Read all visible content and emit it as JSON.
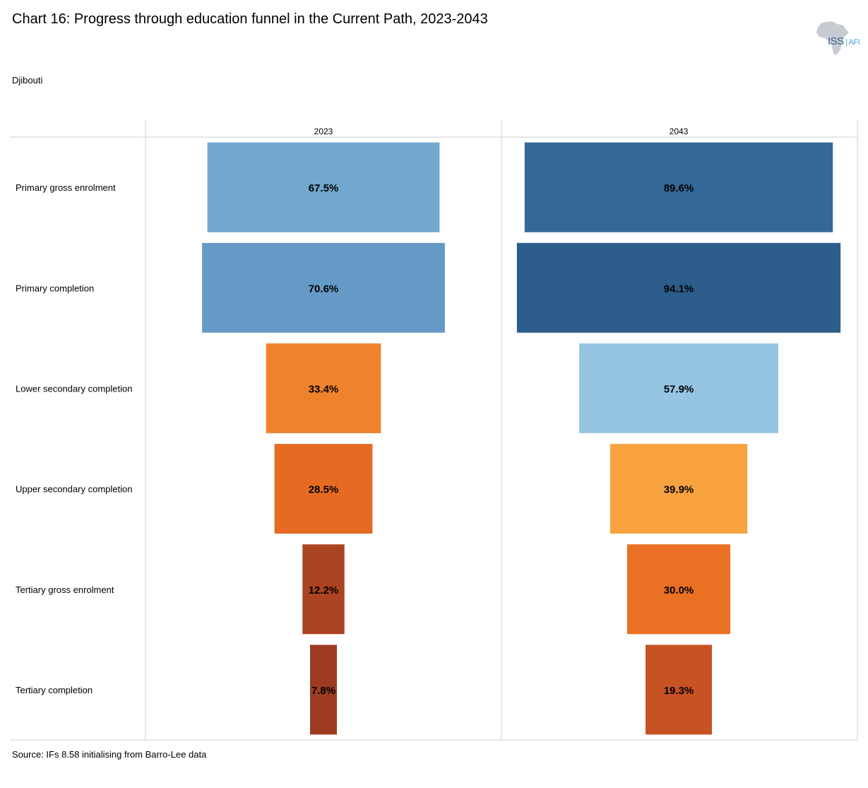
{
  "title": "Chart 16: Progress through education funnel in the Current Path, 2023-2043",
  "subtitle": "Djibouti",
  "source": "Source: IFs 8.58 initialising from Barro-Lee data",
  "logo": {
    "text": "ISS",
    "suffix": "AFI"
  },
  "chart_data": {
    "type": "bar",
    "orientation": "funnel",
    "categories": [
      "Primary gross enrolment",
      "Primary completion",
      "Lower secondary completion",
      "Upper secondary completion",
      "Tertiary gross enrolment",
      "Tertiary completion"
    ],
    "series": [
      {
        "name": "2023",
        "values": [
          67.5,
          70.6,
          33.4,
          28.5,
          12.2,
          7.8
        ],
        "labels": [
          "67.5%",
          "70.6%",
          "33.4%",
          "28.5%",
          "12.2%",
          "7.8%"
        ],
        "colors": [
          "#72a7cf",
          "#6599c6",
          "#ef832d",
          "#e66b22",
          "#ac4322",
          "#9c3b21"
        ]
      },
      {
        "name": "2043",
        "values": [
          89.6,
          94.1,
          57.9,
          39.9,
          30.0,
          19.3
        ],
        "labels": [
          "89.6%",
          "94.1%",
          "57.9%",
          "39.9%",
          "30.0%",
          "19.3%"
        ],
        "colors": [
          "#336897",
          "#2d5d8a",
          "#95c5e2",
          "#f8a240",
          "#ea7024",
          "#c85224"
        ]
      }
    ],
    "grid": true,
    "legend": "none"
  }
}
